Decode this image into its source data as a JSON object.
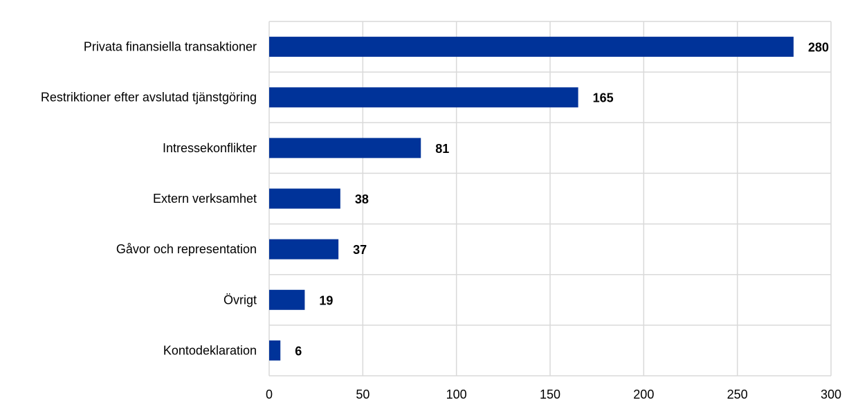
{
  "chart_data": {
    "type": "bar",
    "orientation": "horizontal",
    "categories": [
      "Privata finansiella transaktioner",
      "Restriktioner efter avslutad tjänstgöring",
      "Intressekonflikter",
      "Extern verksamhet",
      "Gåvor och representation",
      "Övrigt",
      "Kontodeklaration"
    ],
    "values": [
      280,
      165,
      81,
      38,
      37,
      19,
      6
    ],
    "data_labels": [
      "280",
      "165",
      "81",
      "38",
      "37",
      "19",
      "6"
    ],
    "x_ticks": [
      0,
      50,
      100,
      150,
      200,
      250,
      300
    ],
    "x_tick_labels": [
      "0",
      "50",
      "100",
      "150",
      "200",
      "250",
      "300"
    ],
    "xlim": [
      0,
      300
    ],
    "grid": true,
    "bar_color": "#003399",
    "grid_color": "#d9d9d9"
  }
}
